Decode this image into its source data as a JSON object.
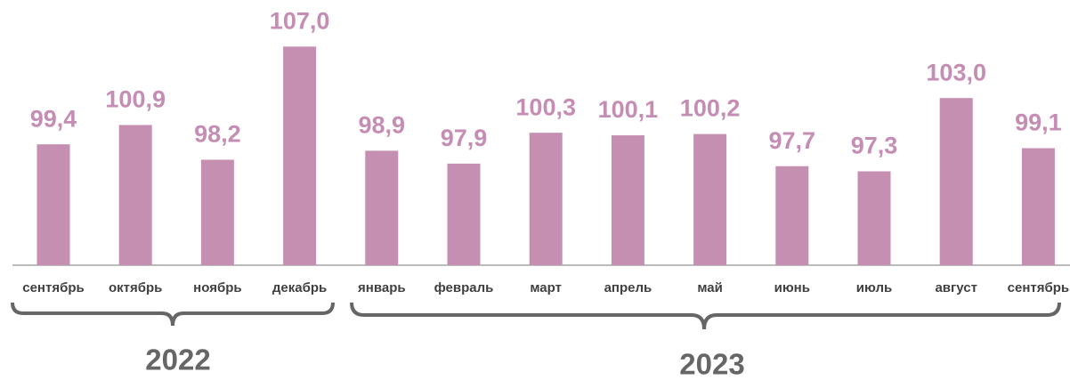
{
  "chart_data": {
    "type": "bar",
    "categories": [
      "сентябрь",
      "октябрь",
      "ноябрь",
      "декабрь",
      "январь",
      "февраль",
      "март",
      "апрель",
      "май",
      "июнь",
      "июль",
      "август",
      "сентябрь"
    ],
    "values": [
      99.4,
      100.9,
      98.2,
      107.0,
      98.9,
      97.9,
      100.3,
      100.1,
      100.2,
      97.7,
      97.3,
      103.0,
      99.1
    ],
    "value_labels": [
      "99,4",
      "100,9",
      "98,2",
      "107,0",
      "98,9",
      "97,9",
      "100,3",
      "100,1",
      "100,2",
      "97,7",
      "97,3",
      "103,0",
      "99,1"
    ],
    "color": "#c48fb1",
    "ylim": [
      90,
      110
    ],
    "groups": [
      "2022",
      "2023"
    ]
  }
}
